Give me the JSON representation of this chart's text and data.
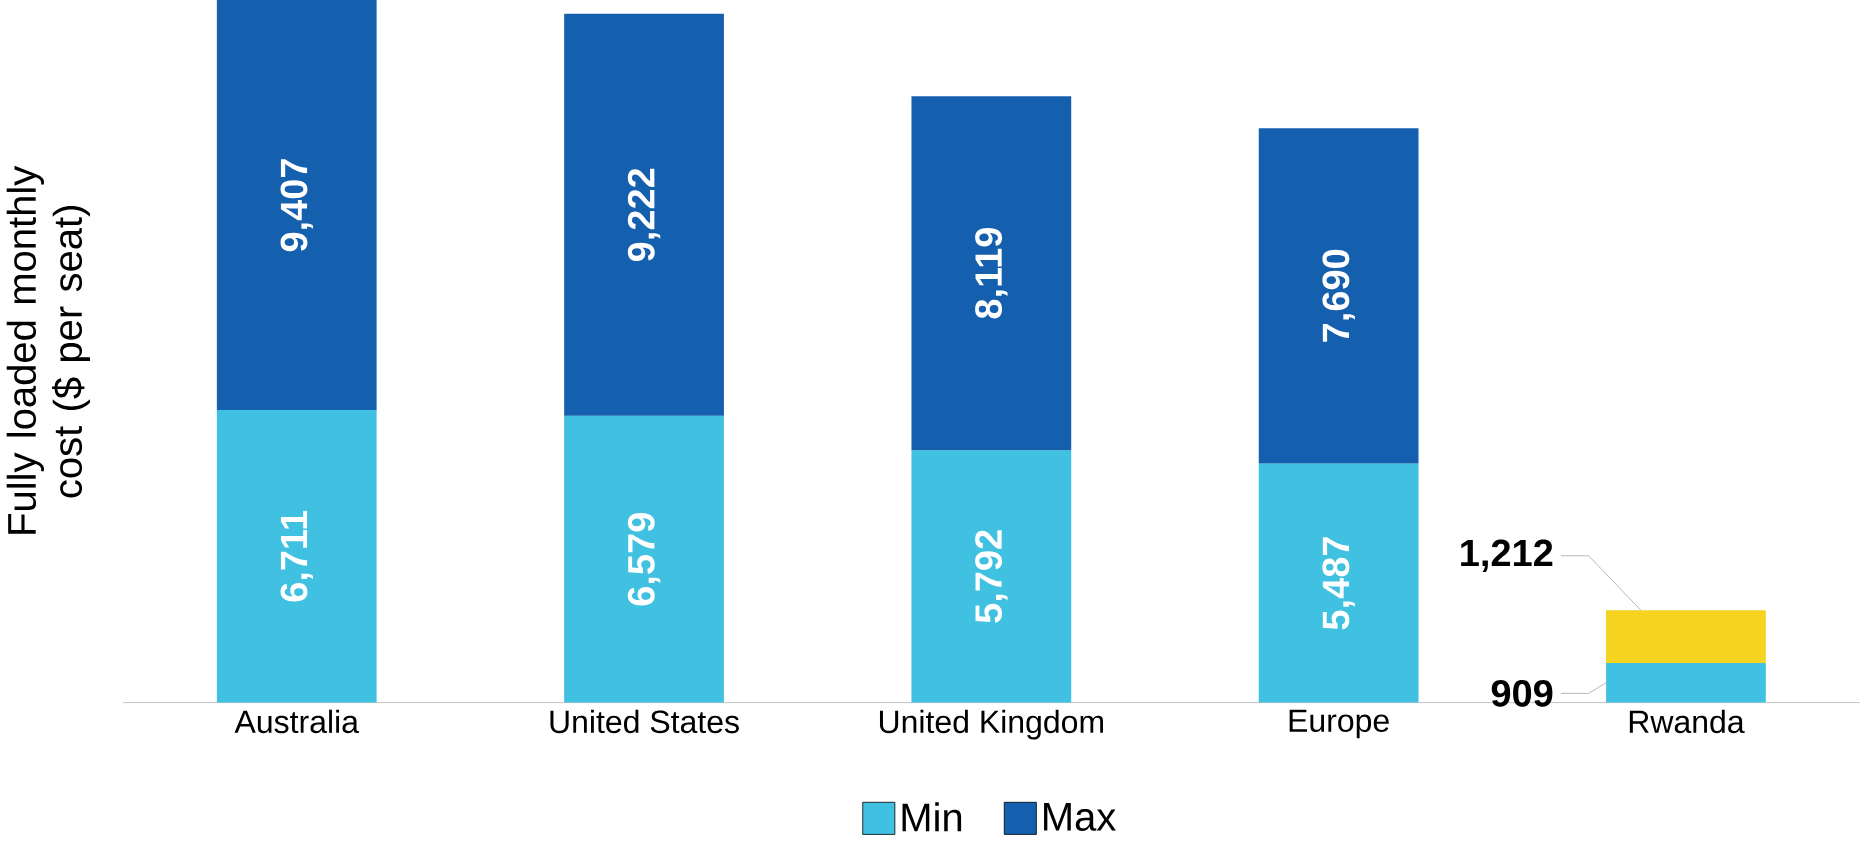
{
  "chart_data": {
    "type": "bar",
    "stacked": true,
    "ylabel": "Fully loaded monthly cost ($ per seat)",
    "categories": [
      "Australia",
      "United States",
      "United Kingdom",
      "Europe",
      "Rwanda"
    ],
    "series": [
      {
        "name": "Min",
        "color": "#41c1e1",
        "colors": [
          "#41c1e1",
          "#41c1e1",
          "#41c1e1",
          "#41c1e1",
          "#41c1e1"
        ],
        "values": [
          6711,
          6579,
          5792,
          5487,
          909
        ],
        "value_labels": [
          "6,711",
          "6,579",
          "5,792",
          "5,487",
          "909"
        ]
      },
      {
        "name": "Max",
        "color": "#1560ae",
        "colors": [
          "#1560ae",
          "#1560ae",
          "#1560ae",
          "#1560ae",
          "#f6d31f"
        ],
        "values": [
          9407,
          9222,
          8119,
          7690,
          1212
        ],
        "value_labels": [
          "9,407",
          "9,222",
          "8,119",
          "7,690",
          "1,212"
        ]
      }
    ],
    "legend": "bottom",
    "grid": false
  }
}
